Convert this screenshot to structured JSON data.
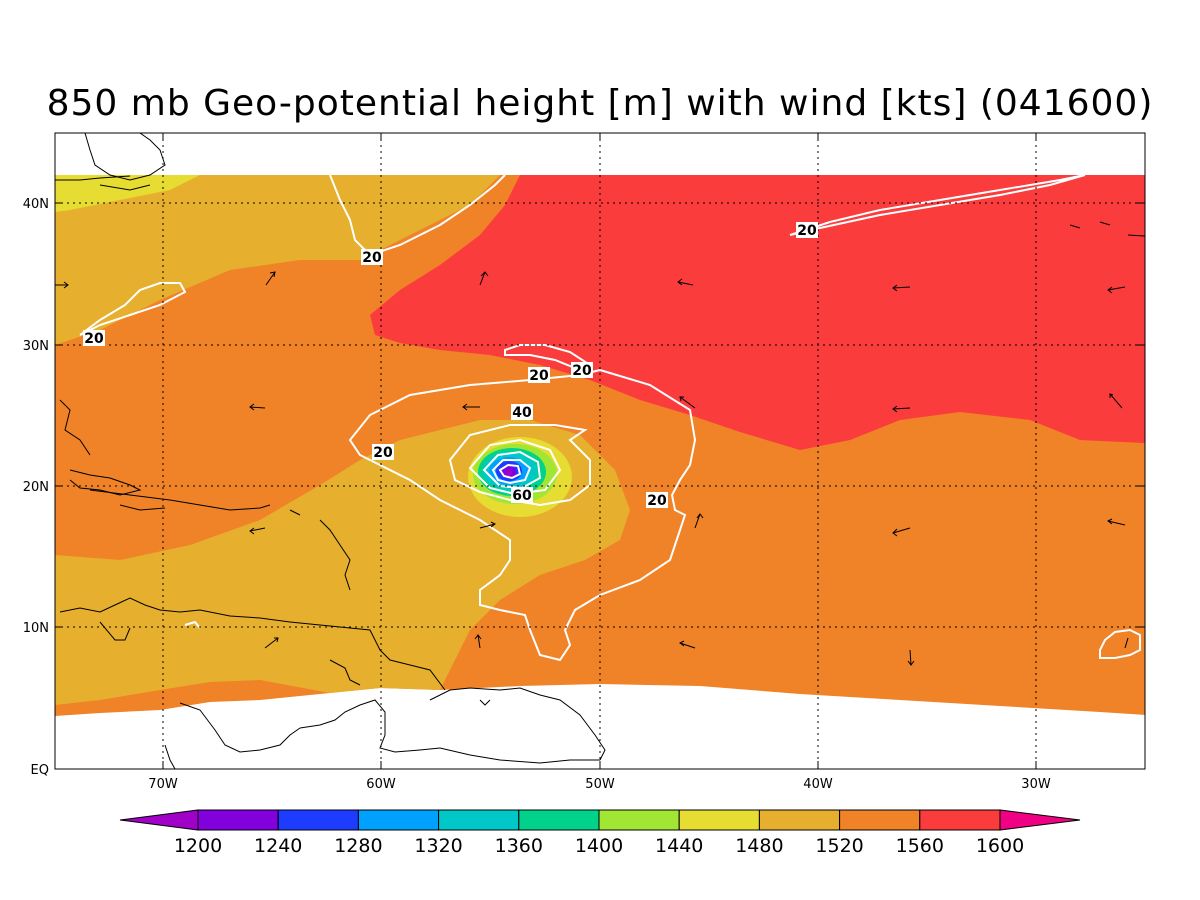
{
  "title": "850 mb Geo-potential height [m] with wind [kts] (041600)",
  "axes": {
    "lon_labels": [
      "70W",
      "60W",
      "50W",
      "40W",
      "30W"
    ],
    "lat_labels": [
      "EQ",
      "10N",
      "20N",
      "30N",
      "40N"
    ]
  },
  "colorbar": {
    "levels": [
      "1200",
      "1240",
      "1280",
      "1320",
      "1360",
      "1400",
      "1440",
      "1480",
      "1520",
      "1560",
      "1600"
    ],
    "colors": [
      "#a000c8",
      "#8200dc",
      "#1e3cff",
      "#00a0ff",
      "#00c8c8",
      "#00d28c",
      "#a0e632",
      "#e6dc32",
      "#e6af2d",
      "#f08228",
      "#fa3c3c",
      "#f00082"
    ]
  },
  "fill_colors": {
    "c1480": "#e6dc32",
    "c1520": "#e6af2d",
    "c1560": "#f08228",
    "c1600": "#fa3c3c"
  },
  "contour_labels": {
    "l20_a": "20",
    "l20_b": "20",
    "l20_c": "20",
    "l20_d": "20",
    "l20_e": "20",
    "l20_f": "20",
    "l20_g": "20",
    "l40": "40",
    "l60": "60"
  }
}
